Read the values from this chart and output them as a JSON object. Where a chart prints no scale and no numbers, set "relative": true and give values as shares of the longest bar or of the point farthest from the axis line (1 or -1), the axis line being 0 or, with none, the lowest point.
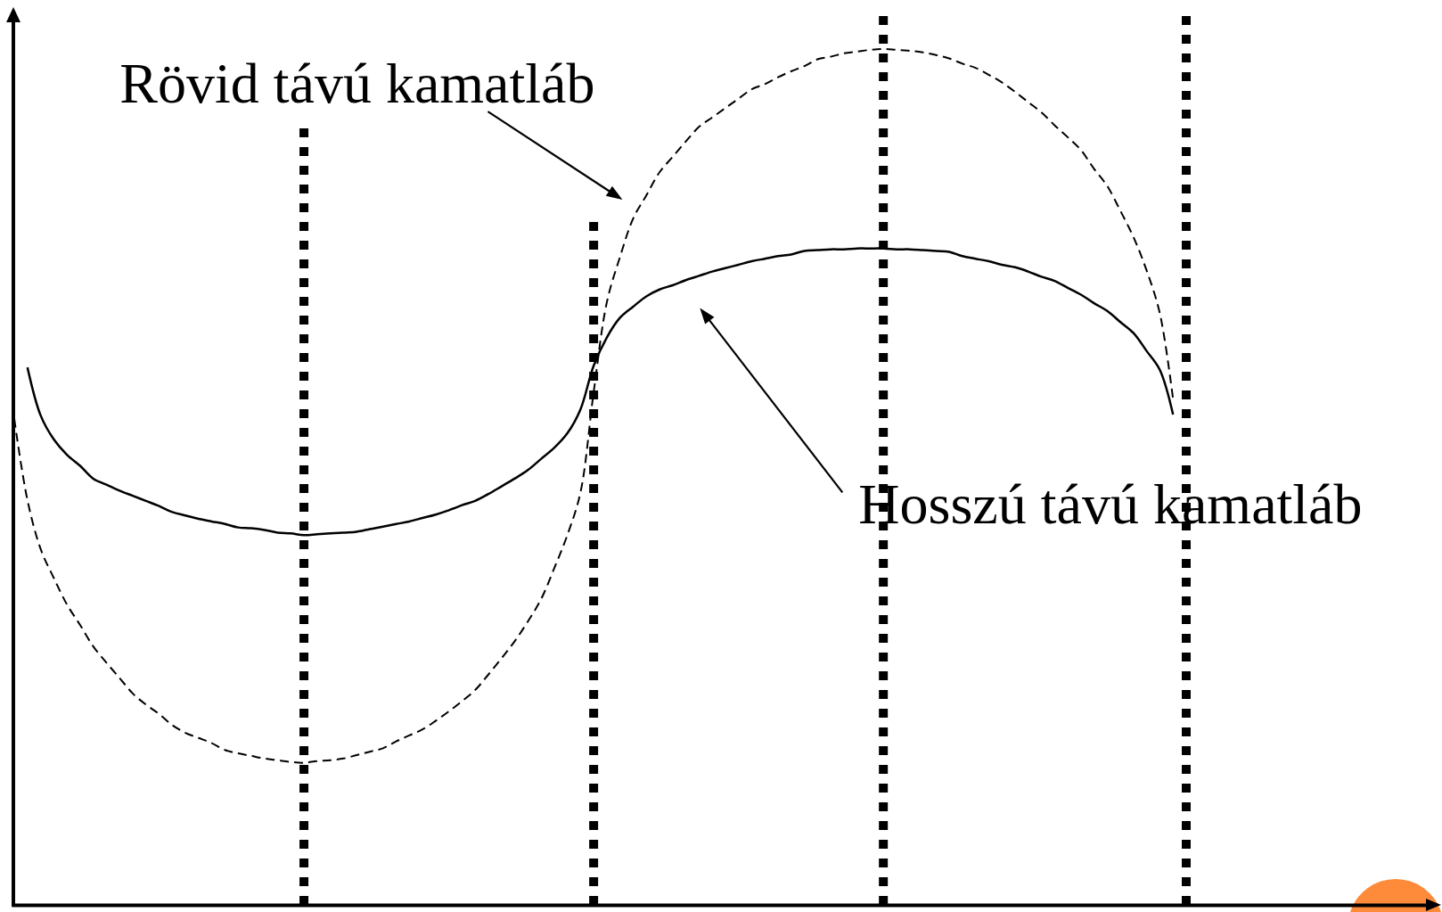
{
  "chart_data": {
    "type": "line",
    "relative": true,
    "grid": "x",
    "categories": [
      null,
      null,
      null,
      null,
      null,
      null,
      null,
      null,
      null,
      null,
      null,
      null,
      null,
      null,
      null,
      null,
      null,
      null,
      null,
      null,
      null,
      null,
      null,
      null,
      null,
      null,
      null,
      null,
      null,
      null,
      null,
      null,
      null,
      null,
      null,
      null,
      null,
      null,
      null,
      null,
      null,
      null,
      null,
      null,
      null,
      null,
      null,
      null,
      null,
      null,
      null,
      null,
      null,
      null,
      null,
      null,
      null,
      null,
      null,
      null,
      null,
      null,
      null,
      null,
      null,
      null,
      null,
      null,
      null,
      null,
      null,
      null,
      null,
      null,
      null,
      null,
      null,
      null,
      null,
      null,
      null,
      null,
      null,
      null,
      null,
      null,
      null,
      null,
      null,
      null
    ],
    "series": [
      {
        "name": "Rövid távú kamatláb",
        "color": "#000000",
        "line_style": "dashed",
        "values": [
          0.568,
          0.473,
          0.416,
          0.382,
          0.351,
          0.327,
          0.302,
          0.283,
          0.265,
          0.247,
          0.234,
          0.223,
          0.21,
          0.201,
          0.195,
          0.189,
          0.181,
          0.177,
          0.174,
          0.171,
          0.169,
          0.167,
          0.166,
          0.168,
          0.169,
          0.171,
          0.175,
          0.179,
          0.183,
          0.191,
          0.198,
          0.205,
          0.215,
          0.226,
          0.238,
          0.251,
          0.269,
          0.288,
          0.308,
          0.331,
          0.357,
          0.393,
          0.432,
          0.482,
          0.599,
          0.704,
          0.757,
          0.802,
          0.829,
          0.856,
          0.874,
          0.892,
          0.909,
          0.92,
          0.931,
          0.942,
          0.953,
          0.959,
          0.967,
          0.974,
          0.98,
          0.988,
          0.991,
          0.995,
          0.997,
          0.999,
          1,
          0.999,
          0.998,
          0.996,
          0.993,
          0.989,
          0.983,
          0.978,
          0.97,
          0.961,
          0.95,
          0.938,
          0.926,
          0.911,
          0.897,
          0.882,
          0.86,
          0.84,
          0.811,
          0.78,
          0.741,
          0.691,
          0.591,
          null
        ]
      },
      {
        "name": "Hosszú távú kamatláb",
        "color": "#000000",
        "line_style": "solid",
        "values": [
          null,
          0.628,
          0.572,
          0.544,
          0.526,
          0.513,
          0.498,
          0.491,
          0.484,
          0.478,
          0.472,
          0.466,
          0.459,
          0.455,
          0.451,
          0.448,
          0.445,
          0.441,
          0.44,
          0.438,
          0.435,
          0.434,
          0.432,
          0.433,
          0.434,
          0.435,
          0.436,
          0.439,
          0.442,
          0.445,
          0.448,
          0.452,
          0.456,
          0.461,
          0.467,
          0.472,
          0.48,
          0.489,
          0.498,
          0.508,
          0.521,
          0.534,
          0.551,
          0.579,
          0.63,
          0.663,
          0.686,
          0.699,
          0.711,
          0.719,
          0.724,
          0.73,
          0.735,
          0.74,
          0.744,
          0.748,
          0.752,
          0.755,
          0.758,
          0.76,
          0.764,
          0.765,
          0.766,
          0.766,
          0.767,
          0.767,
          0.767,
          0.766,
          0.766,
          0.765,
          0.764,
          0.763,
          0.758,
          0.755,
          0.752,
          0.748,
          0.745,
          0.74,
          0.734,
          0.729,
          0.721,
          0.713,
          0.703,
          0.694,
          0.681,
          0.668,
          0.647,
          0.625,
          0.573,
          null
        ]
      }
    ]
  }
}
